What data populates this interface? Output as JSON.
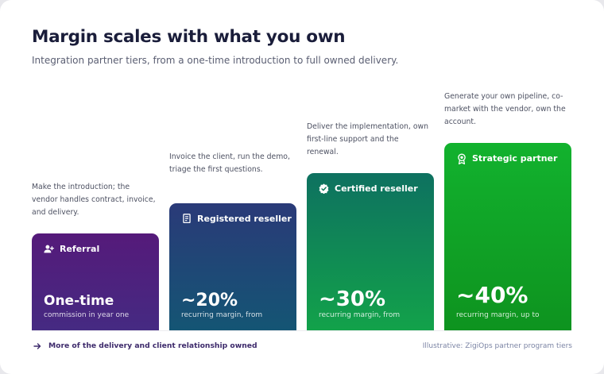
{
  "header": {
    "title": "Margin scales with what you own",
    "subtitle": "Integration partner tiers, from a one-time introduction to full owned delivery."
  },
  "tiers": [
    {
      "name": "Referral",
      "icon": "user-plus-icon",
      "description": "Make the introduction; the vendor handles contract, invoice, and delivery.",
      "value": "One-time",
      "caption": "commission in year one",
      "color": "#551a7a"
    },
    {
      "name": "Registered reseller",
      "icon": "invoice-icon",
      "description": "Invoice the client, run the demo, triage the first questions.",
      "value": "~20%",
      "caption": "recurring margin, from",
      "color": "#1f4a76"
    },
    {
      "name": "Certified reseller",
      "icon": "verified-badge-icon",
      "description": "Deliver the implementation, own first-line support and the renewal.",
      "value": "~30%",
      "caption": "recurring margin, from",
      "color": "#0f8a55"
    },
    {
      "name": "Strategic partner",
      "icon": "award-ribbon-icon",
      "description": "Generate your own pipeline, co-market with the vendor, own the account.",
      "value": "~40%",
      "caption": "recurring margin, up to",
      "color": "#12a626"
    }
  ],
  "footer": {
    "left_text": "More of the delivery and client relationship owned",
    "left_icon": "arrow-right-icon",
    "right_text": "Illustrative: ZigiOps partner program tiers"
  }
}
